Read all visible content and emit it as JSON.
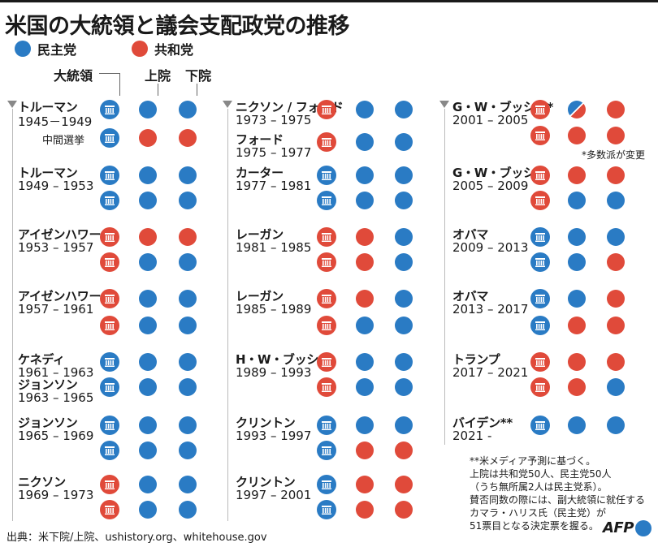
{
  "title": "米国の大統領と議会支配政党の推移",
  "colors": {
    "democrat": "#2a7bc4",
    "republican": "#e04a3a"
  },
  "legend": {
    "democrat": "民主党",
    "republican": "共和党"
  },
  "headers": {
    "president": "大統領",
    "senate": "上院",
    "house": "下院"
  },
  "entries": [
    {
      "name": "トルーマン",
      "years": "1945－1949",
      "rows": [
        {
          "p": "D",
          "s": "D",
          "h": "D"
        },
        {
          "p": "D",
          "s": "R",
          "h": "R",
          "label": "中間選挙"
        }
      ]
    },
    {
      "name": "トルーマン",
      "years": "1949 – 1953",
      "rows": [
        {
          "p": "D",
          "s": "D",
          "h": "D"
        },
        {
          "p": "D",
          "s": "D",
          "h": "D"
        }
      ]
    },
    {
      "name": "アイゼンハワー",
      "years": "1953 – 1957",
      "rows": [
        {
          "p": "R",
          "s": "R",
          "h": "R"
        },
        {
          "p": "R",
          "s": "D",
          "h": "D"
        }
      ]
    },
    {
      "name": "アイゼンハワー",
      "years": "1957 – 1961",
      "rows": [
        {
          "p": "R",
          "s": "D",
          "h": "D"
        },
        {
          "p": "R",
          "s": "D",
          "h": "D"
        }
      ]
    },
    {
      "name": "ケネディ",
      "years": "1961 – 1963",
      "rows": [
        {
          "p": "D",
          "s": "D",
          "h": "D"
        }
      ]
    },
    {
      "name": "ジョンソン",
      "years": "1963 – 1965",
      "rows": [
        {
          "p": "D",
          "s": "D",
          "h": "D"
        }
      ]
    },
    {
      "name": "ジョンソン",
      "years": "1965 – 1969",
      "rows": [
        {
          "p": "D",
          "s": "D",
          "h": "D"
        },
        {
          "p": "D",
          "s": "D",
          "h": "D"
        }
      ]
    },
    {
      "name": "ニクソン",
      "years": "1969 – 1973",
      "rows": [
        {
          "p": "R",
          "s": "D",
          "h": "D"
        },
        {
          "p": "R",
          "s": "D",
          "h": "D"
        }
      ]
    },
    {
      "name": "ニクソン / フォード",
      "years": "1973 – 1975",
      "rows": [
        {
          "p": "R",
          "s": "D",
          "h": "D"
        }
      ]
    },
    {
      "name": "フォード",
      "years": "1975 – 1977",
      "rows": [
        {
          "p": "R",
          "s": "D",
          "h": "D"
        }
      ]
    },
    {
      "name": "カーター",
      "years": "1977 – 1981",
      "rows": [
        {
          "p": "D",
          "s": "D",
          "h": "D"
        },
        {
          "p": "D",
          "s": "D",
          "h": "D"
        }
      ]
    },
    {
      "name": "レーガン",
      "years": "1981 – 1985",
      "rows": [
        {
          "p": "R",
          "s": "R",
          "h": "D"
        },
        {
          "p": "R",
          "s": "R",
          "h": "D"
        }
      ]
    },
    {
      "name": "レーガン",
      "years": "1985 – 1989",
      "rows": [
        {
          "p": "R",
          "s": "R",
          "h": "D"
        },
        {
          "p": "R",
          "s": "D",
          "h": "D"
        }
      ]
    },
    {
      "name": "H・W・ブッシュ",
      "years": "1989 – 1993",
      "rows": [
        {
          "p": "R",
          "s": "D",
          "h": "D"
        },
        {
          "p": "R",
          "s": "D",
          "h": "D"
        }
      ]
    },
    {
      "name": "クリントン",
      "years": "1993 – 1997",
      "rows": [
        {
          "p": "D",
          "s": "D",
          "h": "D"
        },
        {
          "p": "D",
          "s": "R",
          "h": "R"
        }
      ]
    },
    {
      "name": "クリントン",
      "years": "1997 – 2001",
      "rows": [
        {
          "p": "D",
          "s": "R",
          "h": "R"
        },
        {
          "p": "D",
          "s": "R",
          "h": "R"
        }
      ]
    },
    {
      "name": "G・W・ブッシュ*",
      "years": "2001 – 2005",
      "rows": [
        {
          "p": "R",
          "s": "X",
          "h": "R"
        },
        {
          "p": "R",
          "s": "R",
          "h": "R"
        }
      ]
    },
    {
      "name": "G・W・ブッシュ",
      "years": "2005 – 2009",
      "rows": [
        {
          "p": "R",
          "s": "R",
          "h": "R"
        },
        {
          "p": "R",
          "s": "D",
          "h": "D"
        }
      ]
    },
    {
      "name": "オバマ",
      "years": "2009 – 2013",
      "rows": [
        {
          "p": "D",
          "s": "D",
          "h": "D"
        },
        {
          "p": "D",
          "s": "D",
          "h": "R"
        }
      ]
    },
    {
      "name": "オバマ",
      "years": "2013 – 2017",
      "rows": [
        {
          "p": "D",
          "s": "D",
          "h": "R"
        },
        {
          "p": "D",
          "s": "R",
          "h": "R"
        }
      ]
    },
    {
      "name": "トランプ",
      "years": "2017 – 2021",
      "rows": [
        {
          "p": "R",
          "s": "R",
          "h": "R"
        },
        {
          "p": "R",
          "s": "R",
          "h": "D"
        }
      ]
    },
    {
      "name": "バイデン**",
      "years": "2021 -",
      "rows": [
        {
          "p": "D",
          "s": "D",
          "h": "D"
        }
      ]
    }
  ],
  "majority_change_note": "*多数派が変更",
  "footnote": [
    "**米メディア予測に基づく。",
    "上院は共和党50人、民主党50人",
    "（うち無所属2人は民主党系）。",
    "賛否同数の際には、副大統領に就任する",
    "カマラ・ハリス氏（民主党）が",
    "51票目となる決定票を握る。"
  ],
  "source": "出典：米下院/上院、ushistory.org、whitehouse.gov",
  "logo": "AFP"
}
